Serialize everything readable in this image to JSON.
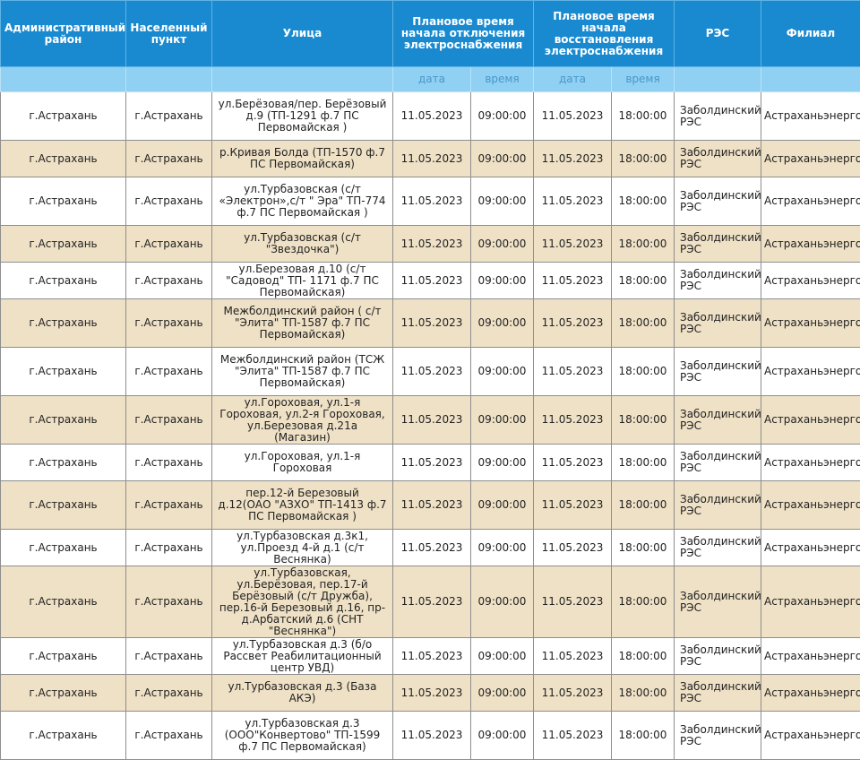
{
  "headers": {
    "district": "Административный район",
    "locality": "Населенный пункт",
    "street": "Улица",
    "off_time": "Плановое время начала отключения электроснабжения",
    "restore_time": "Плановое время начала восстановления электроснабжения",
    "res": "РЭС",
    "branch": "Филиал",
    "date": "дата",
    "time": "время"
  },
  "rows": [
    {
      "district": "г.Астрахань",
      "locality": "г.Астрахань",
      "street": "ул.Берёзовая/пер. Берёзовый д.9 (ТП-1291 ф.7 ПС Первомайская )",
      "off_date": "11.05.2023",
      "off_time": "09:00:00",
      "on_date": "11.05.2023",
      "on_time": "18:00:00",
      "res": "Заболдинский РЭС",
      "branch": "Астраханьэнерго"
    },
    {
      "district": "г.Астрахань",
      "locality": "г.Астрахань",
      "street": "р.Кривая Болда (ТП-1570 ф.7 ПС Первомайская)",
      "off_date": "11.05.2023",
      "off_time": "09:00:00",
      "on_date": "11.05.2023",
      "on_time": "18:00:00",
      "res": "Заболдинский РЭС",
      "branch": "Астраханьэнерго"
    },
    {
      "district": "г.Астрахань",
      "locality": "г.Астрахань",
      "street": "ул.Турбазовская (с/т «Электрон»,с/т \" Эра\" ТП-774 ф.7 ПС Первомайская )",
      "off_date": "11.05.2023",
      "off_time": "09:00:00",
      "on_date": "11.05.2023",
      "on_time": "18:00:00",
      "res": "Заболдинский РЭС",
      "branch": "Астраханьэнерго"
    },
    {
      "district": "г.Астрахань",
      "locality": "г.Астрахань",
      "street": "ул.Турбазовская (с/т \"Звездочка\")",
      "off_date": "11.05.2023",
      "off_time": "09:00:00",
      "on_date": "11.05.2023",
      "on_time": "18:00:00",
      "res": "Заболдинский РЭС",
      "branch": "Астраханьэнерго"
    },
    {
      "district": "г.Астрахань",
      "locality": "г.Астрахань",
      "street": "ул.Березовая д.10 (с/т \"Садовод\" ТП- 1171 ф.7 ПС Первомайская)",
      "off_date": "11.05.2023",
      "off_time": "09:00:00",
      "on_date": "11.05.2023",
      "on_time": "18:00:00",
      "res": "Заболдинский РЭС",
      "branch": "Астраханьэнерго"
    },
    {
      "district": "г.Астрахань",
      "locality": "г.Астрахань",
      "street": "Межболдинский район ( с/т \"Элита\" ТП-1587 ф.7 ПС Первомайская)",
      "off_date": "11.05.2023",
      "off_time": "09:00:00",
      "on_date": "11.05.2023",
      "on_time": "18:00:00",
      "res": "Заболдинский РЭС",
      "branch": "Астраханьэнерго"
    },
    {
      "district": "г.Астрахань",
      "locality": "г.Астрахань",
      "street": "Межболдинский район (ТСЖ \"Элита\" ТП-1587 ф.7 ПС Первомайская)",
      "off_date": "11.05.2023",
      "off_time": "09:00:00",
      "on_date": "11.05.2023",
      "on_time": "18:00:00",
      "res": "Заболдинский РЭС",
      "branch": "Астраханьэнерго"
    },
    {
      "district": "г.Астрахань",
      "locality": "г.Астрахань",
      "street": "ул.Гороховая, ул.1-я Гороховая, ул.2-я Гороховая, ул.Березовая д.21а (Магазин)",
      "off_date": "11.05.2023",
      "off_time": "09:00:00",
      "on_date": "11.05.2023",
      "on_time": "18:00:00",
      "res": "Заболдинский РЭС",
      "branch": "Астраханьэнерго"
    },
    {
      "district": "г.Астрахань",
      "locality": "г.Астрахань",
      "street": "ул.Гороховая, ул.1-я Гороховая",
      "off_date": "11.05.2023",
      "off_time": "09:00:00",
      "on_date": "11.05.2023",
      "on_time": "18:00:00",
      "res": "Заболдинский РЭС",
      "branch": "Астраханьэнерго"
    },
    {
      "district": "г.Астрахань",
      "locality": "г.Астрахань",
      "street": "пер.12-й Березовый д.12(ОАО \"АЗХО\" ТП-1413 ф.7 ПС Первомайская )",
      "off_date": "11.05.2023",
      "off_time": "09:00:00",
      "on_date": "11.05.2023",
      "on_time": "18:00:00",
      "res": "Заболдинский РЭС",
      "branch": "Астраханьэнерго"
    },
    {
      "district": "г.Астрахань",
      "locality": "г.Астрахань",
      "street": "ул.Турбазовская д.3к1, ул.Проезд 4-й д.1 (с/т Веснянка)",
      "off_date": "11.05.2023",
      "off_time": "09:00:00",
      "on_date": "11.05.2023",
      "on_time": "18:00:00",
      "res": "Заболдинский РЭС",
      "branch": "Астраханьэнерго"
    },
    {
      "district": "г.Астрахань",
      "locality": "г.Астрахань",
      "street": "ул.Турбазовская, ул.Берёзовая, пер.17-й Берёзовый (с/т Дружба), пер.16-й Березовый д.16, пр-д.Арбатский д.6 (СНТ \"Веснянка\")",
      "off_date": "11.05.2023",
      "off_time": "09:00:00",
      "on_date": "11.05.2023",
      "on_time": "18:00:00",
      "res": "Заболдинский РЭС",
      "branch": "Астраханьэнерго"
    },
    {
      "district": "г.Астрахань",
      "locality": "г.Астрахань",
      "street": "ул.Турбазовская д.3 (б/о Рассвет Реабилитационный центр УВД)",
      "off_date": "11.05.2023",
      "off_time": "09:00:00",
      "on_date": "11.05.2023",
      "on_time": "18:00:00",
      "res": "Заболдинский РЭС",
      "branch": "Астраханьэнерго"
    },
    {
      "district": "г.Астрахань",
      "locality": "г.Астрахань",
      "street": "ул.Турбазовская д.3 (База АКЭ)",
      "off_date": "11.05.2023",
      "off_time": "09:00:00",
      "on_date": "11.05.2023",
      "on_time": "18:00:00",
      "res": "Заболдинский РЭС",
      "branch": "Астраханьэнерго"
    },
    {
      "district": "г.Астрахань",
      "locality": "г.Астрахань",
      "street": "ул.Турбазовская д.3 (ООО\"Конвертово\" ТП-1599 ф.7 ПС Первомайская)",
      "off_date": "11.05.2023",
      "off_time": "09:00:00",
      "on_date": "11.05.2023",
      "on_time": "18:00:00",
      "res": "Заболдинский РЭС",
      "branch": "Астраханьэнерго"
    }
  ]
}
